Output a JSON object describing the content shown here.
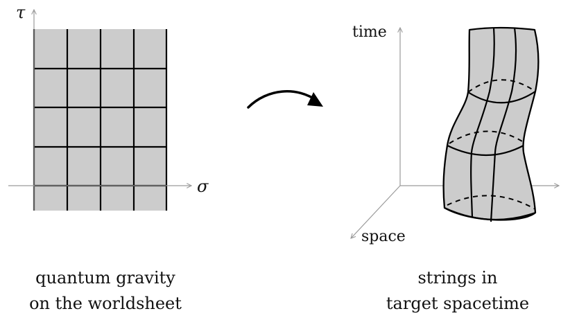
{
  "worldsheet": {
    "axis_tau": "τ",
    "axis_sigma": "σ",
    "caption_line1": "quantum gravity",
    "caption_line2": "on the worldsheet",
    "fill_color": "#cccccc"
  },
  "spacetime": {
    "axis_time": "time",
    "axis_space": "space",
    "caption_line1": "strings in",
    "caption_line2": "target spacetime",
    "fill_color": "#cccccc"
  },
  "arrow": {
    "icon": "curved-arrow-icon"
  }
}
